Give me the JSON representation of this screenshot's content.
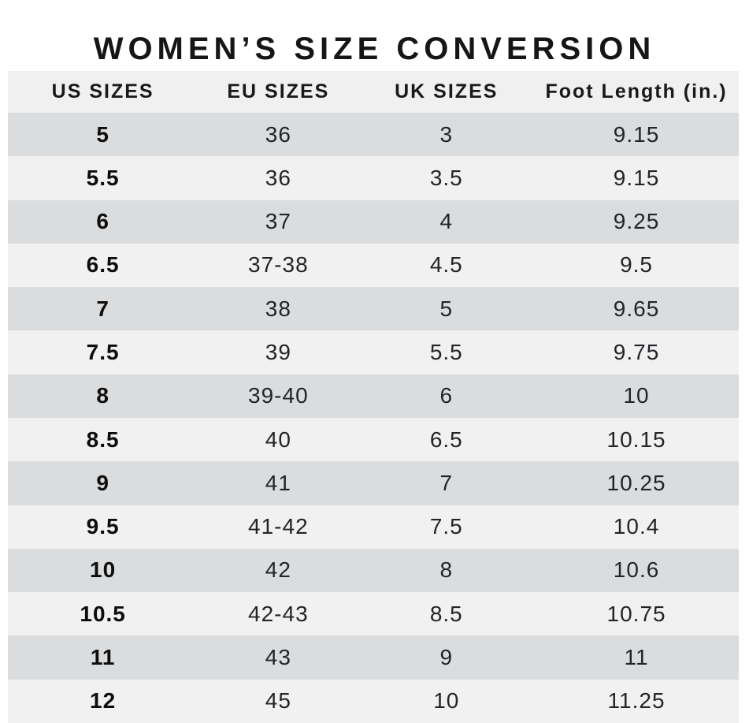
{
  "title": "WOMEN’S SIZE CONVERSION",
  "chart_data": {
    "type": "table",
    "title": "WOMEN’S SIZE CONVERSION",
    "columns": [
      "US SIZES",
      "EU SIZES",
      "UK SIZES",
      "Foot Length (in.)"
    ],
    "rows": [
      [
        "5",
        "36",
        "3",
        "9.15"
      ],
      [
        "5.5",
        "36",
        "3.5",
        "9.15"
      ],
      [
        "6",
        "37",
        "4",
        "9.25"
      ],
      [
        "6.5",
        "37-38",
        "4.5",
        "9.5"
      ],
      [
        "7",
        "38",
        "5",
        "9.65"
      ],
      [
        "7.5",
        "39",
        "5.5",
        "9.75"
      ],
      [
        "8",
        "39-40",
        "6",
        "10"
      ],
      [
        "8.5",
        "40",
        "6.5",
        "10.15"
      ],
      [
        "9",
        "41",
        "7",
        "10.25"
      ],
      [
        "9.5",
        "41-42",
        "7.5",
        "10.4"
      ],
      [
        "10",
        "42",
        "8",
        "10.6"
      ],
      [
        "10.5",
        "42-43",
        "8.5",
        "10.75"
      ],
      [
        "11",
        "43",
        "9",
        "11"
      ],
      [
        "12",
        "45",
        "10",
        "11.25"
      ]
    ],
    "layout": {
      "first_data_row_shade": "dark",
      "alternating_rows": true,
      "column_alignment": "center"
    }
  },
  "colors": {
    "row_dark": "#dbdcde",
    "row_light": "#f1f1f2",
    "header_bg": "#f0f0f1",
    "title": "#161616",
    "text": "#232427",
    "text_bold": "#0d0d0d",
    "page_bg": "#ffffff"
  }
}
